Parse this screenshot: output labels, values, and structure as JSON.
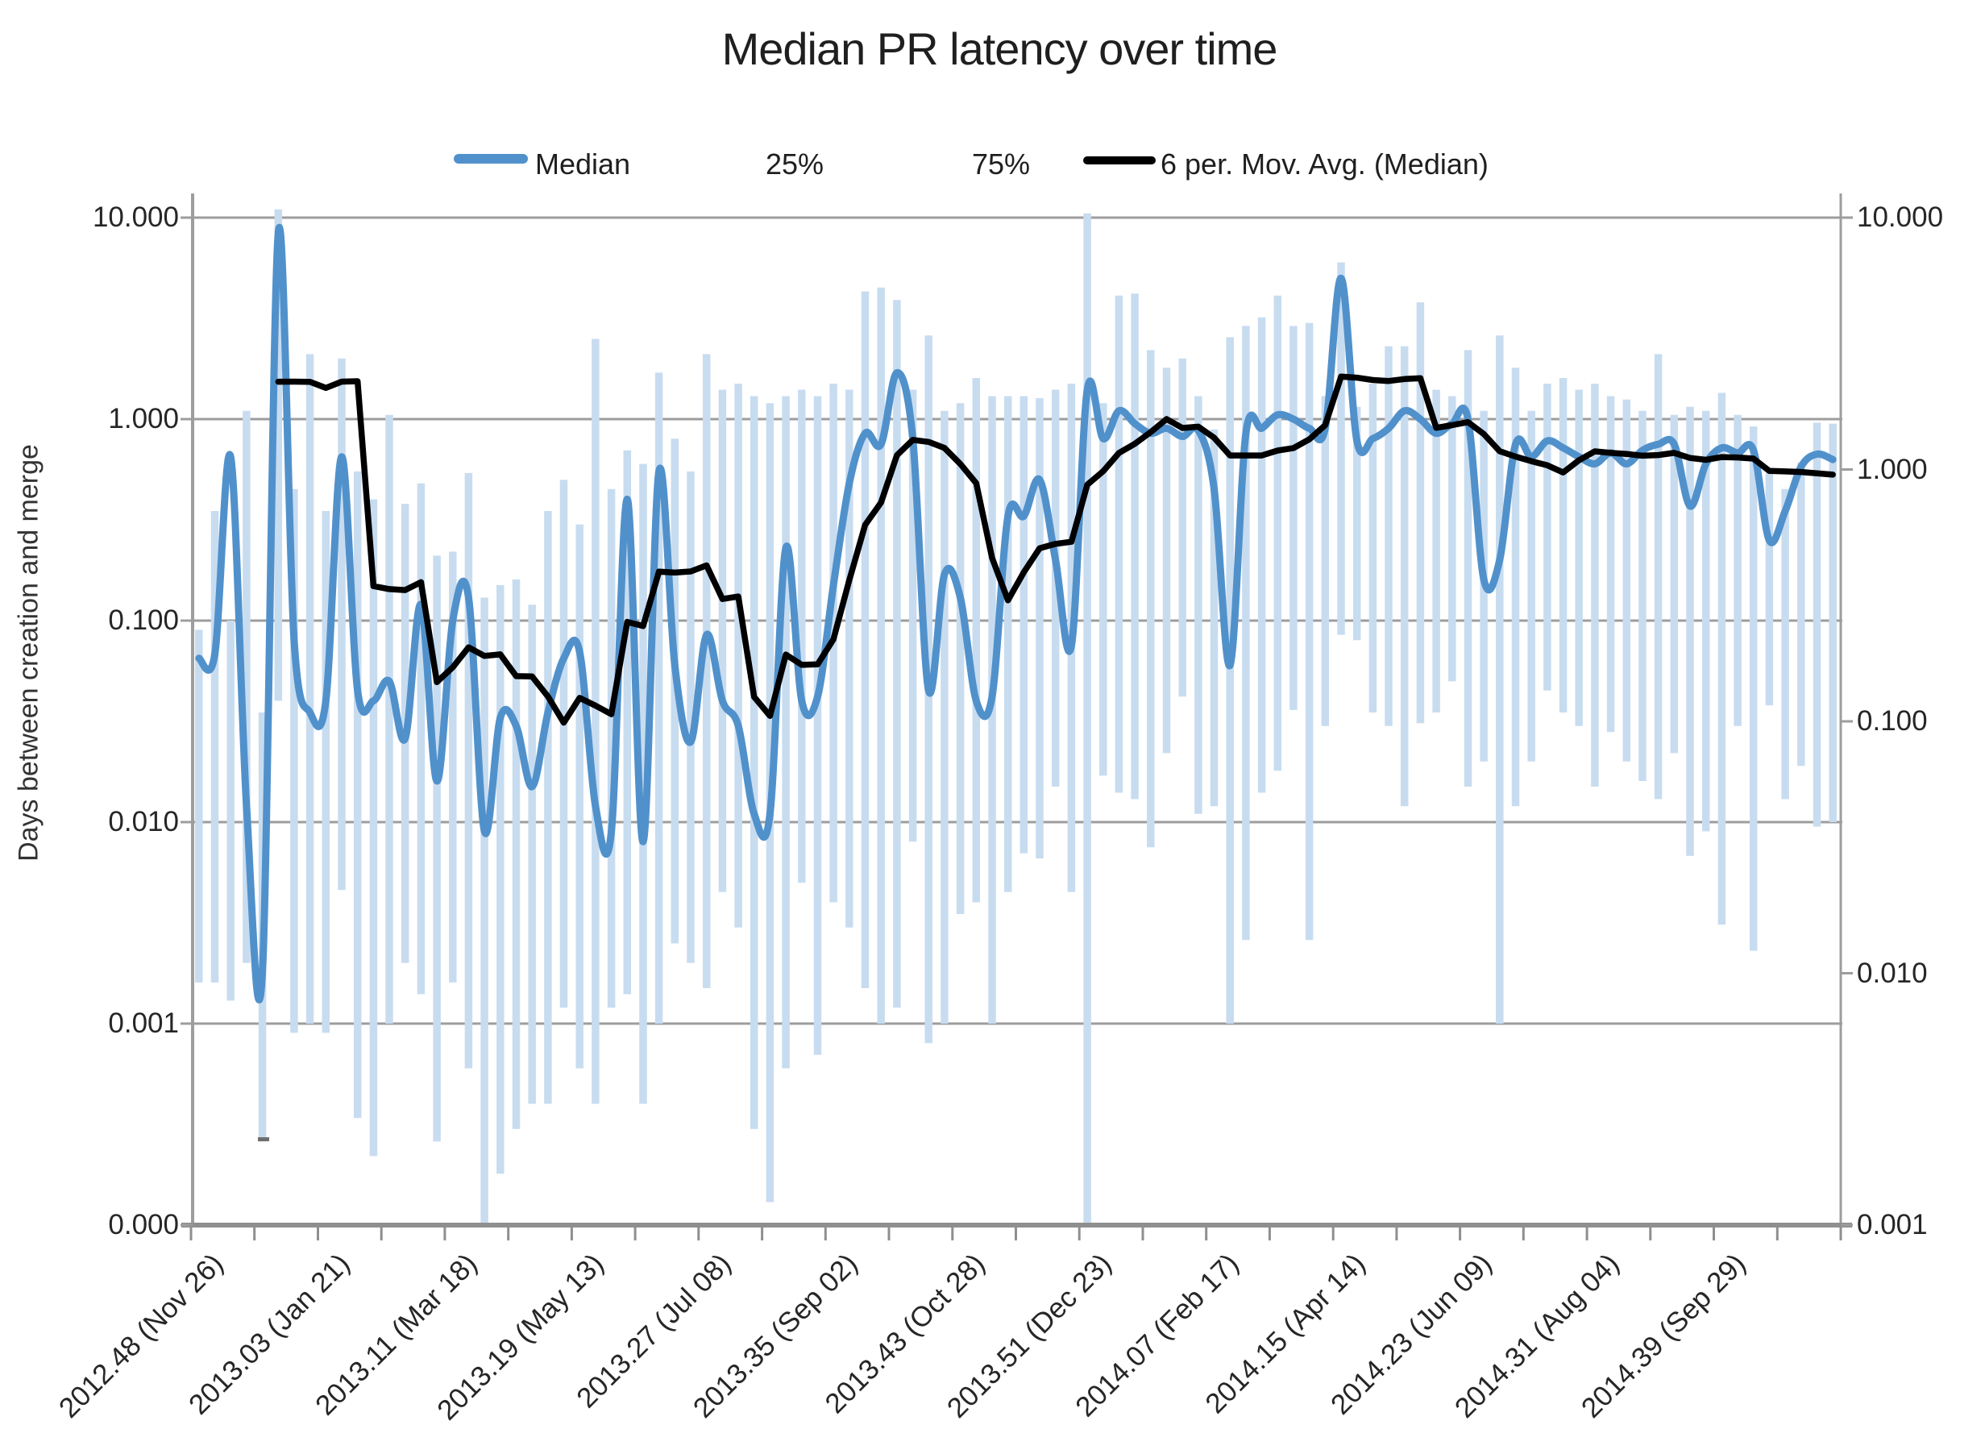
{
  "title": "Median PR latency over time",
  "legend": {
    "items": [
      {
        "label": "Median",
        "swatch": "blue-line",
        "color": "#5191CB"
      },
      {
        "label": "25%",
        "swatch": "none"
      },
      {
        "label": "75%",
        "swatch": "none"
      },
      {
        "label": "6 per. Mov. Avg. (Median)",
        "swatch": "black-line",
        "color": "#000000"
      }
    ]
  },
  "y_axis": {
    "title": "Days between creation and merge",
    "left_tick_labels": [
      "10.000",
      "1.000",
      "0.100",
      "0.010",
      "0.001",
      "0.000"
    ],
    "right_tick_labels": [
      "10.000",
      "1.000",
      "0.100",
      "0.010",
      "0.001"
    ]
  },
  "chart_data": {
    "type": "line",
    "title": "Median PR latency over time",
    "ylabel": "Days between creation and merge",
    "y_scale": "log",
    "grid": "horizontal",
    "legend_position": "top-center",
    "left_axis_range": [
      0.0001,
      10
    ],
    "right_axis_range": [
      0.001,
      10
    ],
    "n_points": 104,
    "x_tick_interval": 4,
    "x_label_interval": 8,
    "x_labels": [
      "2012.48 (Nov 26)",
      "2013.03 (Jan 21)",
      "2013.11 (Mar 18)",
      "2013.19 (May 13)",
      "2013.27 (Jul 08)",
      "2013.35 (Sep 02)",
      "2013.43 (Oct 28)",
      "2013.51 (Dec 23)",
      "2014.07 (Feb 17)",
      "2014.15 (Apr 14)",
      "2014.23 (Jun 09)",
      "2014.31 (Aug 04)",
      "2014.39 (Sep 29)"
    ],
    "series": [
      {
        "name": "Median",
        "render": "smooth-line",
        "color": "#5191CB",
        "values": [
          0.065,
          0.068,
          0.65,
          0.012,
          0.0018,
          8.4,
          0.08,
          0.035,
          0.04,
          0.65,
          0.045,
          0.04,
          0.05,
          0.026,
          0.12,
          0.016,
          0.1,
          0.13,
          0.009,
          0.033,
          0.03,
          0.015,
          0.035,
          0.065,
          0.07,
          0.012,
          0.009,
          0.4,
          0.008,
          0.55,
          0.06,
          0.025,
          0.085,
          0.04,
          0.03,
          0.011,
          0.011,
          0.23,
          0.04,
          0.042,
          0.15,
          0.48,
          0.85,
          0.75,
          1.7,
          0.8,
          0.045,
          0.17,
          0.13,
          0.04,
          0.042,
          0.33,
          0.33,
          0.5,
          0.2,
          0.075,
          1.4,
          0.8,
          1.1,
          0.95,
          0.85,
          0.9,
          0.82,
          0.88,
          0.45,
          0.06,
          0.85,
          0.9,
          1.05,
          1.0,
          0.9,
          0.9,
          5.0,
          0.78,
          0.8,
          0.9,
          1.1,
          1.0,
          0.85,
          0.95,
          1.0,
          0.16,
          0.2,
          0.75,
          0.65,
          0.78,
          0.72,
          0.65,
          0.6,
          0.68,
          0.6,
          0.7,
          0.75,
          0.75,
          0.37,
          0.6,
          0.72,
          0.68,
          0.7,
          0.25,
          0.35,
          0.58,
          0.67,
          0.63
        ]
      },
      {
        "name": "25%",
        "render": "range-bar-low",
        "color": "#C8DCF0",
        "values": [
          0.0016,
          0.0016,
          0.0013,
          0.002,
          0.00026,
          0.04,
          0.0009,
          0.001,
          0.0009,
          0.0046,
          0.00034,
          0.00022,
          0.001,
          0.002,
          0.0014,
          0.00026,
          0.0016,
          0.0006,
          0.0001,
          0.00018,
          0.0003,
          0.0004,
          0.0004,
          0.0012,
          0.0006,
          0.0004,
          0.0012,
          0.0014,
          0.0004,
          0.001,
          0.0025,
          0.002,
          0.0015,
          0.0045,
          0.003,
          0.0003,
          0.00013,
          0.0006,
          0.005,
          0.0007,
          0.004,
          0.003,
          0.0015,
          0.001,
          0.0012,
          0.008,
          0.0008,
          0.001,
          0.0035,
          0.004,
          0.001,
          0.0045,
          0.007,
          0.0066,
          0.015,
          0.0045,
          0.0001,
          0.017,
          0.014,
          0.013,
          0.0075,
          0.022,
          0.042,
          0.011,
          0.012,
          0.001,
          0.0026,
          0.014,
          0.018,
          0.036,
          0.0026,
          0.03,
          0.085,
          0.08,
          0.035,
          0.03,
          0.012,
          0.031,
          0.035,
          0.05,
          0.015,
          0.02,
          0.001,
          0.012,
          0.02,
          0.045,
          0.035,
          0.03,
          0.015,
          0.028,
          0.02,
          0.016,
          0.013,
          0.022,
          0.0068,
          0.009,
          0.0031,
          0.03,
          0.0023,
          0.038,
          0.013,
          0.019,
          0.0095,
          0.01
        ]
      },
      {
        "name": "75%",
        "render": "range-bar-high",
        "color": "#C8DCF0",
        "values": [
          0.09,
          0.35,
          0.1,
          1.1,
          0.035,
          11,
          0.45,
          2.1,
          0.35,
          2.0,
          0.55,
          0.4,
          1.05,
          0.38,
          0.48,
          0.21,
          0.22,
          0.54,
          0.13,
          0.15,
          0.16,
          0.12,
          0.35,
          0.5,
          0.3,
          2.5,
          0.45,
          0.7,
          0.6,
          1.7,
          0.8,
          0.55,
          2.1,
          1.4,
          1.5,
          1.3,
          1.2,
          1.3,
          1.4,
          1.3,
          1.5,
          1.4,
          4.3,
          4.5,
          3.9,
          1.4,
          2.6,
          1.1,
          1.2,
          1.6,
          1.3,
          1.3,
          1.3,
          1.27,
          1.4,
          1.5,
          10.5,
          1.2,
          4.1,
          4.2,
          2.2,
          1.8,
          2.0,
          1.3,
          0.89,
          2.55,
          2.9,
          3.2,
          4.1,
          2.9,
          3.0,
          1.3,
          6.0,
          1.15,
          1.5,
          2.3,
          2.3,
          3.8,
          1.4,
          1.3,
          2.2,
          1.1,
          2.6,
          1.8,
          1.1,
          1.5,
          1.6,
          1.4,
          1.5,
          1.3,
          1.25,
          1.1,
          2.1,
          1.05,
          1.15,
          1.1,
          1.35,
          1.05,
          0.92,
          0.54,
          0.45,
          0.61,
          0.96,
          0.95
        ]
      },
      {
        "name": "6 per. Mov. Avg. (Median)",
        "render": "line",
        "color": "#000000",
        "derived": "trailing mean of 6 Median points"
      }
    ],
    "colors": {
      "gridline": "#9D9D9D",
      "axis": "#8F8F8F",
      "range_bar": "#C8DCF0",
      "median_line": "#5191CB",
      "moving_avg_line": "#000000"
    }
  }
}
